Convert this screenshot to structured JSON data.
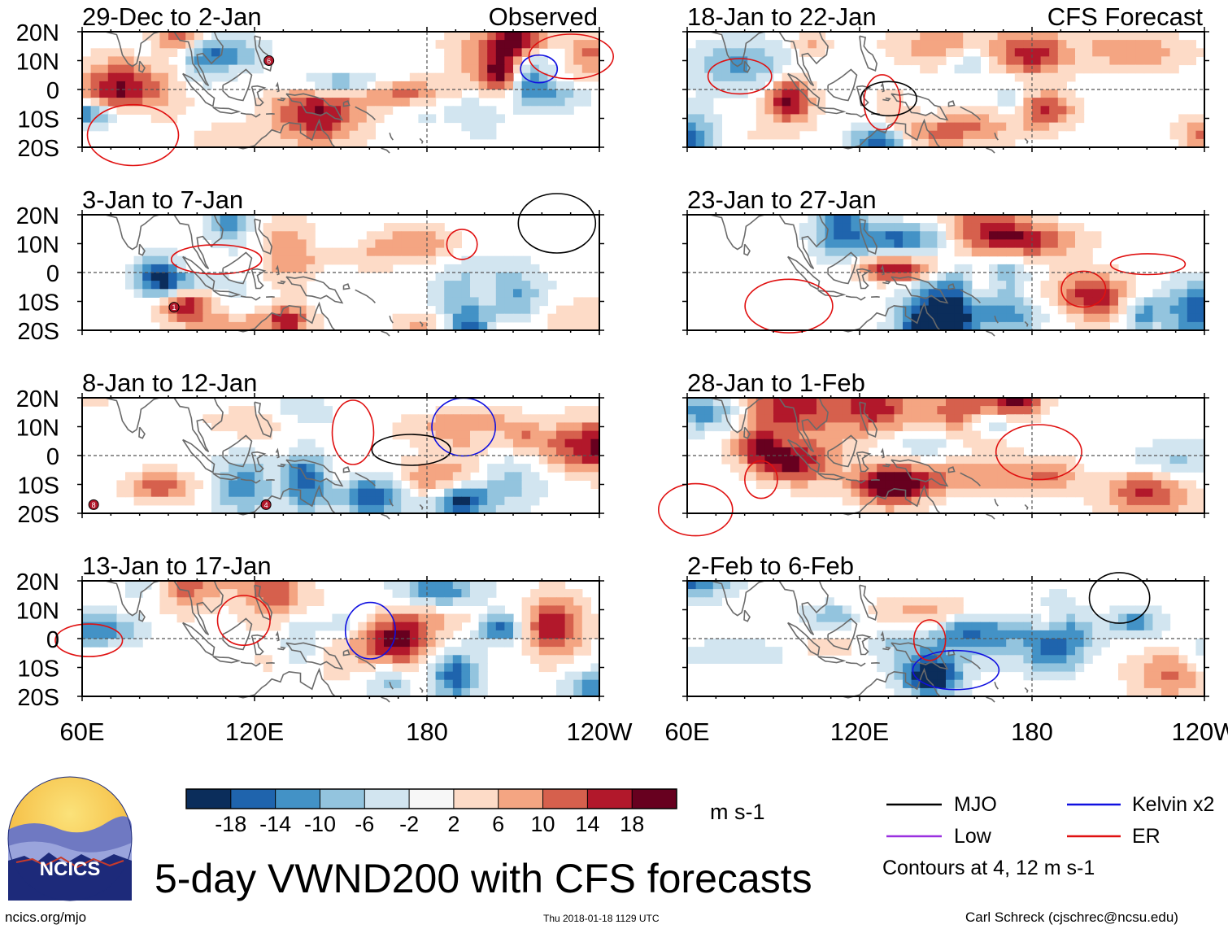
{
  "chart_data": {
    "type": "heatmap",
    "title": "5-day VWND200 with CFS forecasts",
    "variable": "VWND200",
    "units": "m s-1",
    "columns": [
      {
        "label": "Observed",
        "panels": [
          "29-Dec to 2-Jan",
          "3-Jan to 7-Jan",
          "8-Jan to 12-Jan",
          "13-Jan to 17-Jan"
        ]
      },
      {
        "label": "CFS Forecast",
        "panels": [
          "18-Jan to 22-Jan",
          "23-Jan to 27-Jan",
          "28-Jan to 1-Feb",
          "2-Feb to 6-Feb"
        ]
      }
    ],
    "xlim": [
      60,
      240
    ],
    "ylim": [
      -20,
      20
    ],
    "x_ticks": [
      "60E",
      "120E",
      "180",
      "120W"
    ],
    "y_ticks": [
      "20N",
      "10N",
      "0",
      "10S",
      "20S"
    ],
    "colorbar": {
      "levels": [
        "-18",
        "-14",
        "-10",
        "-6",
        "-2",
        "2",
        "6",
        "10",
        "14",
        "18"
      ],
      "colors": [
        "#0b2d5b",
        "#1f64ad",
        "#4392c6",
        "#93c4de",
        "#d2e5f0",
        "#f7f7f7",
        "#fddbc7",
        "#f4a582",
        "#d6604d",
        "#b2182b",
        "#67001f"
      ]
    },
    "legend": [
      {
        "name": "MJO",
        "color": "#000000"
      },
      {
        "name": "Kelvin x2",
        "color": "#1010e0"
      },
      {
        "name": "Low",
        "color": "#9a30e0"
      },
      {
        "name": "ER",
        "color": "#e01010"
      }
    ],
    "contour_note": "Contours at 4, 12 m s-1",
    "storms": [
      {
        "panel": 0,
        "label": "6"
      },
      {
        "panel": 1,
        "label": "1"
      },
      {
        "panel": 2,
        "label": "8"
      },
      {
        "panel": 2,
        "label": "4"
      }
    ]
  },
  "footer": {
    "logo_text": "NCICS",
    "site": "ncics.org/mjo",
    "timestamp": "Thu 2018-01-18 1129 UTC",
    "credit": "Carl Schreck (cjschrec@ncsu.edu)"
  }
}
